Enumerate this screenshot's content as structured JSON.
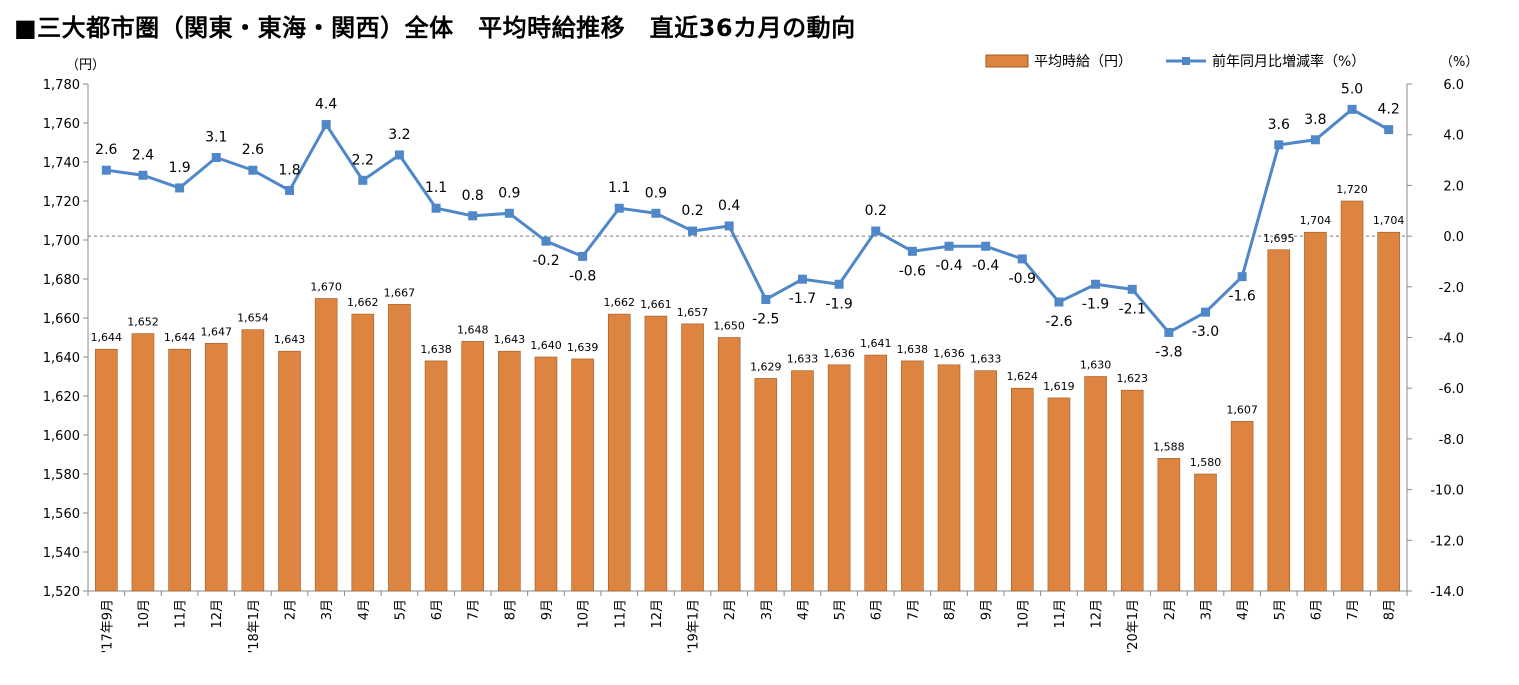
{
  "title": "■三大都市圏（関東・東海・関西）全体　平均時給推移　直近36カ月の動向",
  "chart_data": {
    "type": "bar",
    "left_unit": "（円）",
    "right_unit": "（%）",
    "legend": [
      "平均時給（円）",
      "前年同月比増減率（%）"
    ],
    "legend_placement": "top-right",
    "categories": [
      "'17年9月",
      "10月",
      "11月",
      "12月",
      "'18年1月",
      "2月",
      "3月",
      "4月",
      "5月",
      "6月",
      "7月",
      "8月",
      "9月",
      "10月",
      "11月",
      "12月",
      "'19年1月",
      "2月",
      "3月",
      "4月",
      "5月",
      "6月",
      "7月",
      "8月",
      "9月",
      "10月",
      "11月",
      "12月",
      "'20年1月",
      "2月",
      "3月",
      "4月",
      "5月",
      "6月",
      "7月",
      "8月"
    ],
    "series": [
      {
        "name": "平均時給（円）",
        "type": "bar",
        "axis": "left",
        "color": "#DD8440",
        "values": [
          1644,
          1652,
          1644,
          1647,
          1654,
          1643,
          1670,
          1662,
          1667,
          1638,
          1648,
          1643,
          1640,
          1639,
          1662,
          1661,
          1657,
          1650,
          1629,
          1633,
          1636,
          1641,
          1638,
          1636,
          1633,
          1624,
          1619,
          1630,
          1623,
          1588,
          1580,
          1607,
          1695,
          1704,
          1720,
          1704
        ],
        "labels": [
          "1,644",
          "1,652",
          "1,644",
          "1,647",
          "1,654",
          "1,643",
          "1,670",
          "1,662",
          "1,667",
          "1,638",
          "1,648",
          "1,643",
          "1,640",
          "1,639",
          "1,662",
          "1,661",
          "1,657",
          "1,650",
          "1,629",
          "1,633",
          "1,636",
          "1,641",
          "1,638",
          "1,636",
          "1,633",
          "1,624",
          "1,619",
          "1,630",
          "1,623",
          "1,588",
          "1,580",
          "1,607",
          "1,695",
          "1,704",
          "1,720",
          "1,704"
        ]
      },
      {
        "name": "前年同月比増減率（%）",
        "type": "line",
        "axis": "right",
        "color": "#4F87C8",
        "values": [
          2.6,
          2.4,
          1.9,
          3.1,
          2.6,
          1.8,
          4.4,
          2.2,
          3.2,
          1.1,
          0.8,
          0.9,
          -0.2,
          -0.8,
          1.1,
          0.9,
          0.2,
          0.4,
          -2.5,
          -1.7,
          -1.9,
          0.2,
          -0.6,
          -0.4,
          -0.4,
          -0.9,
          -2.6,
          -1.9,
          -2.1,
          -3.8,
          -3.0,
          -1.6,
          3.6,
          3.8,
          5.0,
          4.2
        ],
        "labels": [
          "2.6",
          "2.4",
          "1.9",
          "3.1",
          "2.6",
          "1.8",
          "4.4",
          "2.2",
          "3.2",
          "1.1",
          "0.8",
          "0.9",
          "-0.2",
          "-0.8",
          "1.1",
          "0.9",
          "0.2",
          "0.4",
          "-2.5",
          "-1.7",
          "-1.9",
          "0.2",
          "-0.6",
          "-0.4",
          "-0.4",
          "-0.9",
          "-2.6",
          "-1.9",
          "-2.1",
          "-3.8",
          "-3.0",
          "-1.6",
          "3.6",
          "3.8",
          "5.0",
          "4.2"
        ]
      }
    ],
    "left_axis": {
      "min": 1520,
      "max": 1780,
      "ticks": [
        "1,520",
        "1,540",
        "1,560",
        "1,580",
        "1,600",
        "1,620",
        "1,640",
        "1,660",
        "1,680",
        "1,700",
        "1,720",
        "1,740",
        "1,760",
        "1,780"
      ]
    },
    "right_axis": {
      "min": -14,
      "max": 6,
      "ticks": [
        "-14.0",
        "-12.0",
        "-10.0",
        "-8.0",
        "-6.0",
        "-4.0",
        "-2.0",
        "0.0",
        "2.0",
        "4.0",
        "6.0"
      ]
    },
    "zero_reference_line": "dashed",
    "grid": false
  }
}
